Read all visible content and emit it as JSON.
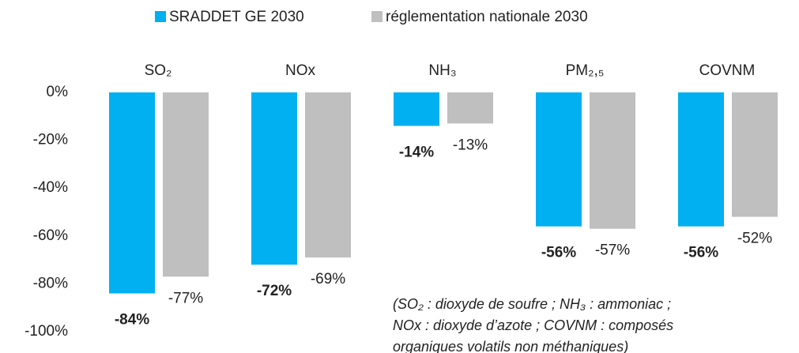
{
  "chart_data": {
    "type": "bar",
    "categories": [
      "SO₂",
      "NOx",
      "NH₃",
      "PM₂,₅",
      "COVNM"
    ],
    "series": [
      {
        "name": "SRADDET GE 2030",
        "color": "#00b0f0",
        "values": [
          -84,
          -72,
          -14,
          -56,
          -56
        ],
        "value_labels": [
          "-84%",
          "-72%",
          "-14%",
          "-56%",
          "-56%"
        ]
      },
      {
        "name": "réglementation nationale 2030",
        "color": "#bfbfbf",
        "values": [
          -77,
          -69,
          -13,
          -57,
          -52
        ],
        "value_labels": [
          "-77%",
          "-69%",
          "-13%",
          "-57%",
          "-52%"
        ]
      }
    ],
    "ylim": [
      0,
      -100
    ],
    "yticks": [
      {
        "value": 0,
        "label": "0%"
      },
      {
        "value": -20,
        "label": "-20%"
      },
      {
        "value": -40,
        "label": "-40%"
      },
      {
        "value": -60,
        "label": "-60%"
      },
      {
        "value": -80,
        "label": "-80%"
      },
      {
        "value": -100,
        "label": "-100%"
      }
    ],
    "grid": false,
    "annotation": [
      "(SO₂ : dioxyde de soufre ; NH₃ : ammoniac ;",
      "NOx : dioxyde d’azote ; COVNM : composés",
      "organiques volatils non méthaniques)"
    ]
  }
}
